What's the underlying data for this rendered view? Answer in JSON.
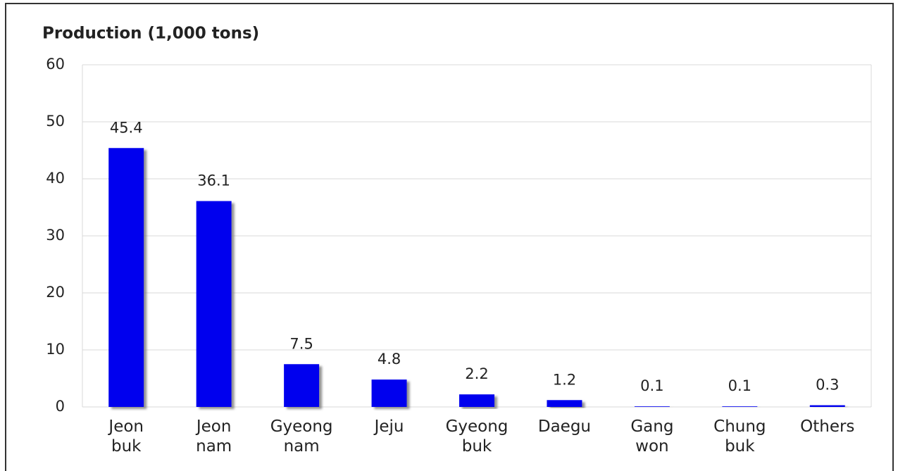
{
  "chart_data": {
    "type": "bar",
    "title": "Production (1,000 tons)",
    "categories": [
      "Jeon buk",
      "Jeon nam",
      "Gyeong nam",
      "Jeju",
      "Gyeong buk",
      "Daegu",
      "Gang won",
      "Chung buk",
      "Others"
    ],
    "values": [
      45.4,
      36.1,
      7.5,
      4.8,
      2.2,
      1.2,
      0.1,
      0.1,
      0.3
    ],
    "color": "#0000ee",
    "ylim": [
      0,
      60
    ],
    "yticks": [
      0,
      10,
      20,
      30,
      40,
      50,
      60
    ],
    "grid": true
  }
}
